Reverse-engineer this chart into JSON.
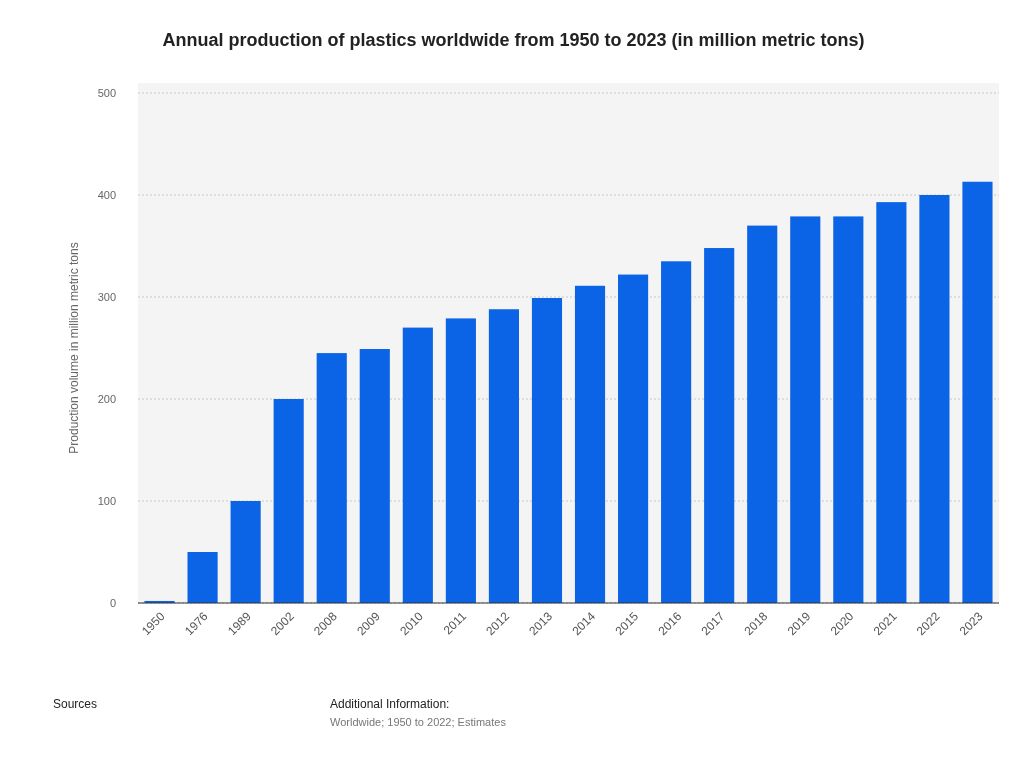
{
  "chart_data": {
    "type": "bar",
    "title": "Annual production of plastics worldwide from 1950 to 2023 (in million metric tons)",
    "ylabel": "Production volume in million metric tons",
    "categories": [
      "1950",
      "1976",
      "1989",
      "2002",
      "2008",
      "2009",
      "2010",
      "2011",
      "2012",
      "2013",
      "2014",
      "2015",
      "2016",
      "2017",
      "2018",
      "2019",
      "2020",
      "2021",
      "2022",
      "2023"
    ],
    "values": [
      2,
      50,
      100,
      200,
      245,
      249,
      270,
      279,
      288,
      299,
      311,
      322,
      335,
      348,
      370,
      379,
      379,
      393,
      400,
      413
    ],
    "color": "#0b63e5",
    "ylim": [
      0,
      500
    ],
    "yticks": [
      0,
      100,
      200,
      300,
      400,
      500
    ],
    "grid": "y",
    "annotations": [
      "Sources",
      "Additional Information:",
      "Worldwide; 1950 to 2022; Estimates"
    ]
  }
}
